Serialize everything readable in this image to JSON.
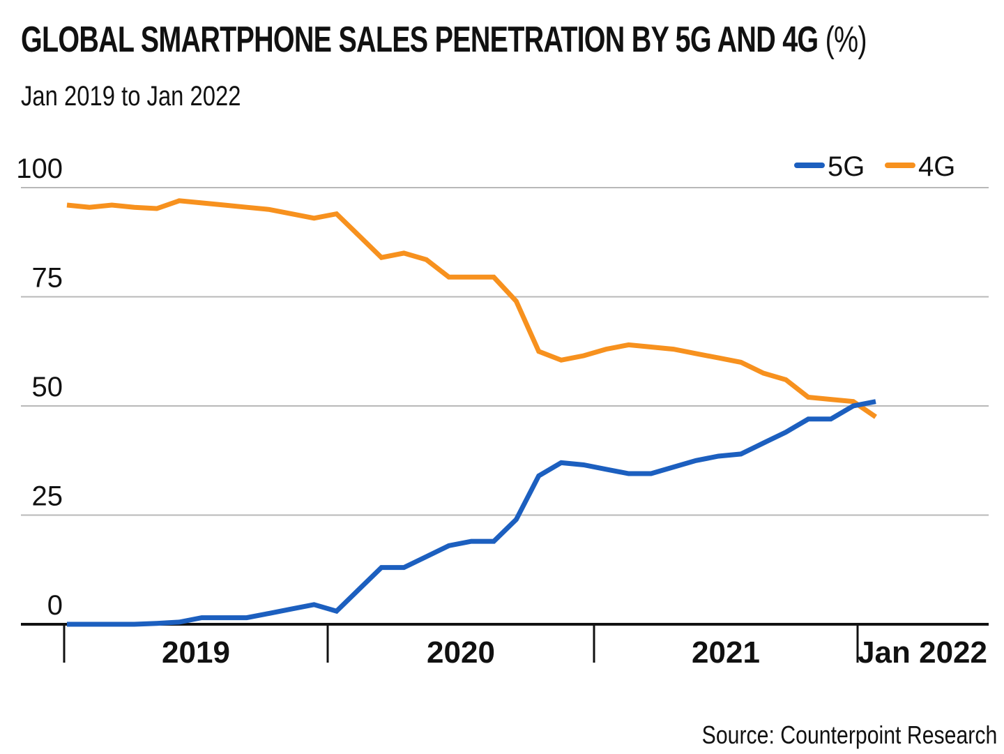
{
  "header": {
    "title": "GLOBAL SMARTPHONE SALES PENETRATION BY 5G AND 4G",
    "title_unit": "(%)",
    "subtitle": "Jan 2019 to Jan 2022"
  },
  "footer": {
    "source": "Source: Counterpoint Research"
  },
  "colors": {
    "5G": "#1c5fbf",
    "4G": "#f7911e",
    "grid": "#b8b8b8",
    "axis": "#111111"
  },
  "chart_data": {
    "type": "line",
    "title": "GLOBAL SMARTPHONE SALES PENETRATION BY 5G AND 4G (%)",
    "subtitle": "Jan 2019 to Jan 2022",
    "xlabel": "",
    "ylabel": "",
    "ylim": [
      0,
      100
    ],
    "xlim": [
      "2019-01",
      "2022-01"
    ],
    "y_ticks": [
      0,
      25,
      50,
      75,
      100
    ],
    "x_ticks": [
      "2019",
      "2020",
      "2021",
      "Jan 2022"
    ],
    "grid": "horizontal",
    "legend_position": "top-right",
    "series": [
      {
        "name": "5G",
        "color": "#1c5fbf",
        "points": [
          [
            "2019-01",
            0
          ],
          [
            "2019-02",
            0
          ],
          [
            "2019-03",
            0
          ],
          [
            "2019-04",
            0
          ],
          [
            "2019-05",
            0.2
          ],
          [
            "2019-06",
            0.5
          ],
          [
            "2019-07",
            1.5
          ],
          [
            "2019-08",
            1.5
          ],
          [
            "2019-09",
            1.5
          ],
          [
            "2019-10",
            2.5
          ],
          [
            "2019-11",
            3.5
          ],
          [
            "2019-12",
            4.5
          ],
          [
            "2020-01",
            3
          ],
          [
            "2020-02",
            8
          ],
          [
            "2020-03",
            13
          ],
          [
            "2020-04",
            13
          ],
          [
            "2020-05",
            15.5
          ],
          [
            "2020-06",
            18
          ],
          [
            "2020-07",
            19
          ],
          [
            "2020-08",
            19
          ],
          [
            "2020-09",
            24
          ],
          [
            "2020-10",
            34
          ],
          [
            "2020-11",
            37
          ],
          [
            "2020-12",
            36.5
          ],
          [
            "2021-01",
            35.5
          ],
          [
            "2021-02",
            34.5
          ],
          [
            "2021-03",
            34.5
          ],
          [
            "2021-04",
            36
          ],
          [
            "2021-05",
            37.5
          ],
          [
            "2021-06",
            38.5
          ],
          [
            "2021-07",
            39
          ],
          [
            "2021-08",
            41.5
          ],
          [
            "2021-09",
            44
          ],
          [
            "2021-10",
            47
          ],
          [
            "2021-11",
            47
          ],
          [
            "2021-12",
            50
          ],
          [
            "2022-01",
            51
          ]
        ]
      },
      {
        "name": "4G",
        "color": "#f7911e",
        "points": [
          [
            "2019-01",
            96
          ],
          [
            "2019-02",
            95.5
          ],
          [
            "2019-03",
            96
          ],
          [
            "2019-04",
            95.5
          ],
          [
            "2019-05",
            95.2
          ],
          [
            "2019-06",
            97
          ],
          [
            "2019-07",
            96.5
          ],
          [
            "2019-08",
            96
          ],
          [
            "2019-09",
            95.5
          ],
          [
            "2019-10",
            95
          ],
          [
            "2019-11",
            94
          ],
          [
            "2019-12",
            93
          ],
          [
            "2020-01",
            94
          ],
          [
            "2020-02",
            89
          ],
          [
            "2020-03",
            84
          ],
          [
            "2020-04",
            85
          ],
          [
            "2020-05",
            83.5
          ],
          [
            "2020-06",
            79.5
          ],
          [
            "2020-07",
            79.5
          ],
          [
            "2020-08",
            79.5
          ],
          [
            "2020-09",
            74
          ],
          [
            "2020-10",
            62.5
          ],
          [
            "2020-11",
            60.5
          ],
          [
            "2020-12",
            61.5
          ],
          [
            "2021-01",
            63
          ],
          [
            "2021-02",
            64
          ],
          [
            "2021-03",
            63.5
          ],
          [
            "2021-04",
            63
          ],
          [
            "2021-05",
            62
          ],
          [
            "2021-06",
            61
          ],
          [
            "2021-07",
            60
          ],
          [
            "2021-08",
            57.5
          ],
          [
            "2021-09",
            56
          ],
          [
            "2021-10",
            52
          ],
          [
            "2021-11",
            51.5
          ],
          [
            "2021-12",
            51
          ],
          [
            "2022-01",
            47.5
          ]
        ]
      }
    ]
  }
}
